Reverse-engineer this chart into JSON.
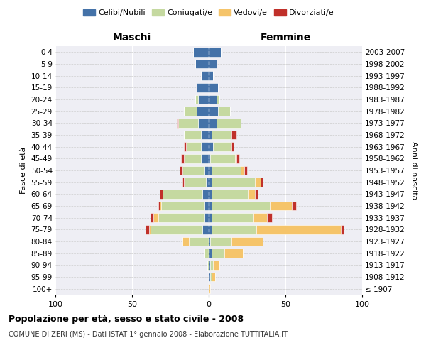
{
  "age_groups": [
    "100+",
    "95-99",
    "90-94",
    "85-89",
    "80-84",
    "75-79",
    "70-74",
    "65-69",
    "60-64",
    "55-59",
    "50-54",
    "45-49",
    "40-44",
    "35-39",
    "30-34",
    "25-29",
    "20-24",
    "15-19",
    "10-14",
    "5-9",
    "0-4"
  ],
  "birth_years": [
    "≤ 1907",
    "1908-1912",
    "1913-1917",
    "1918-1922",
    "1923-1927",
    "1928-1932",
    "1933-1937",
    "1938-1942",
    "1943-1947",
    "1948-1952",
    "1953-1957",
    "1958-1962",
    "1963-1967",
    "1968-1972",
    "1973-1977",
    "1978-1982",
    "1983-1987",
    "1988-1992",
    "1993-1997",
    "1998-2002",
    "2003-2007"
  ],
  "colors": {
    "celibi": "#4472a8",
    "coniugati": "#c5d9a0",
    "vedovi": "#f5c46a",
    "divorziati": "#c0302a"
  },
  "maschi": {
    "celibi": [
      0,
      0,
      0,
      0,
      0,
      4,
      3,
      3,
      4,
      2,
      3,
      5,
      5,
      5,
      7,
      8,
      7,
      8,
      5,
      9,
      10
    ],
    "coniugati": [
      0,
      0,
      1,
      3,
      13,
      34,
      30,
      28,
      26,
      14,
      14,
      11,
      10,
      11,
      13,
      8,
      2,
      0,
      0,
      0,
      0
    ],
    "vedovi": [
      0,
      0,
      0,
      0,
      4,
      1,
      3,
      1,
      0,
      0,
      0,
      0,
      0,
      0,
      0,
      0,
      0,
      0,
      0,
      0,
      0
    ],
    "divorziati": [
      0,
      0,
      0,
      0,
      0,
      2,
      2,
      1,
      2,
      1,
      2,
      2,
      1,
      0,
      1,
      0,
      0,
      0,
      0,
      0,
      0
    ]
  },
  "femmine": {
    "celibi": [
      0,
      1,
      1,
      2,
      1,
      2,
      2,
      2,
      2,
      2,
      2,
      1,
      3,
      2,
      5,
      6,
      5,
      6,
      3,
      5,
      8
    ],
    "coniugati": [
      0,
      1,
      2,
      8,
      14,
      29,
      27,
      38,
      24,
      28,
      19,
      16,
      12,
      13,
      16,
      8,
      2,
      0,
      0,
      0,
      0
    ],
    "vedovi": [
      1,
      2,
      4,
      12,
      20,
      55,
      9,
      14,
      4,
      4,
      2,
      1,
      0,
      0,
      0,
      0,
      0,
      0,
      0,
      0,
      0
    ],
    "divorziati": [
      0,
      0,
      0,
      0,
      0,
      2,
      3,
      3,
      2,
      1,
      2,
      2,
      1,
      3,
      0,
      0,
      0,
      0,
      0,
      0,
      0
    ]
  },
  "title": "Popolazione per età, sesso e stato civile - 2008",
  "subtitle": "COMUNE DI ZERI (MS) - Dati ISTAT 1° gennaio 2008 - Elaborazione TUTTITALIA.IT",
  "xlabel_left": "Maschi",
  "xlabel_right": "Femmine",
  "ylabel_left": "Fasce di età",
  "ylabel_right": "Anni di nascita",
  "xlim": 100,
  "legend_labels": [
    "Celibi/Nubili",
    "Coniugati/e",
    "Vedovi/e",
    "Divorziati/e"
  ],
  "bg_color": "#eeeef4",
  "fig_color": "#ffffff"
}
